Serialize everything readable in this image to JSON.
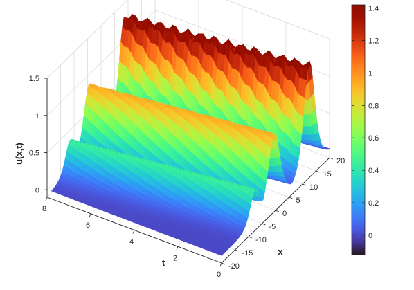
{
  "chart_data": {
    "type": "surface",
    "title": "",
    "xlabel": "x",
    "ylabel": "t",
    "zlabel": "u(x,t)",
    "x_ticks": [
      -20,
      -15,
      -10,
      -5,
      0,
      5,
      10,
      15,
      20
    ],
    "t_ticks": [
      0,
      2,
      4,
      6,
      8
    ],
    "z_ticks": [
      0,
      0.5,
      1,
      1.5
    ],
    "x_tick_labels": [
      "-20",
      "-15",
      "-10",
      "-5",
      "0",
      "5",
      "10",
      "15",
      "20"
    ],
    "t_tick_labels": [
      "0",
      "2",
      "4",
      "6",
      "8"
    ],
    "z_tick_labels": [
      "0",
      "0.5",
      "1",
      "1.5"
    ],
    "xlim": [
      -20,
      20
    ],
    "tlim": [
      0,
      8
    ],
    "zlim": [
      -0.1,
      1.5
    ],
    "grid": true,
    "colormap": "turbo",
    "colorbar": {
      "ticks": [
        0,
        0.2,
        0.4,
        0.6,
        0.8,
        1,
        1.2,
        1.4
      ],
      "labels": [
        "0",
        "0.2",
        "0.4",
        "0.6",
        "0.8",
        "1",
        "1.2",
        "1.4"
      ],
      "range": [
        -0.12,
        1.42
      ]
    },
    "waves": [
      {
        "amplitude": 1.42,
        "t_range": [
          0,
          7.8
        ],
        "x_start": 12.5,
        "x_drift_per_t": -0.7,
        "width": 2.7,
        "ripple": 0.03
      },
      {
        "amplitude": 0.95,
        "t_range": [
          0,
          7.8
        ],
        "x_start": -0.5,
        "x_drift_per_t": -0.7,
        "width": 2.9,
        "ripple": 0
      },
      {
        "amplitude": 0.45,
        "t_range": [
          0,
          7.8
        ],
        "x_start": -7.5,
        "x_drift_per_t": -0.7,
        "width": 2.5,
        "ripple": 0
      }
    ],
    "background_level": 0
  }
}
